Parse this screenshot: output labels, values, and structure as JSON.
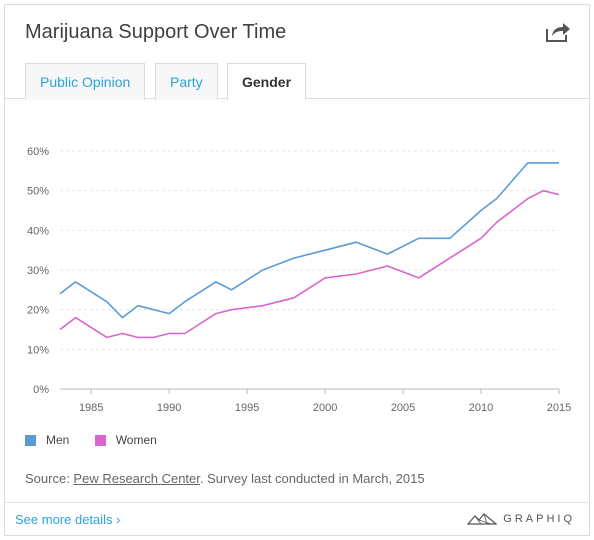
{
  "header": {
    "title": "Marijuana Support Over Time",
    "share_icon": "share-icon"
  },
  "tabs": [
    {
      "label": "Public Opinion",
      "active": false
    },
    {
      "label": "Party",
      "active": false
    },
    {
      "label": "Gender",
      "active": true
    }
  ],
  "chart_data": {
    "type": "line",
    "title": "",
    "xlabel": "",
    "ylabel": "",
    "xlim": [
      1983,
      2015
    ],
    "ylim": [
      0,
      60
    ],
    "x_ticks": [
      1985,
      1990,
      1995,
      2000,
      2005,
      2010,
      2015
    ],
    "x_tick_labels": [
      "1985",
      "1990",
      "1995",
      "2000",
      "2005",
      "2010",
      "2015"
    ],
    "y_ticks": [
      0,
      10,
      20,
      30,
      40,
      50,
      60
    ],
    "y_tick_labels": [
      "0%",
      "10%",
      "20%",
      "30%",
      "40%",
      "50%",
      "60%"
    ],
    "grid": true,
    "legend_position": "bottom-left",
    "series": [
      {
        "name": "Men",
        "color": "#5b9bd5",
        "x": [
          1983,
          1984,
          1986,
          1987,
          1988,
          1990,
          1991,
          1993,
          1994,
          1996,
          1998,
          2000,
          2002,
          2004,
          2006,
          2008,
          2010,
          2011,
          2013,
          2014,
          2015
        ],
        "y": [
          24,
          27,
          22,
          18,
          21,
          19,
          22,
          27,
          25,
          30,
          33,
          35,
          37,
          34,
          38,
          38,
          45,
          48,
          57,
          57,
          57
        ]
      },
      {
        "name": "Women",
        "color": "#d966cc",
        "x": [
          1983,
          1984,
          1986,
          1987,
          1988,
          1989,
          1990,
          1991,
          1993,
          1994,
          1996,
          1998,
          2000,
          2002,
          2004,
          2006,
          2008,
          2010,
          2011,
          2013,
          2014,
          2015
        ],
        "y": [
          15,
          18,
          13,
          14,
          13,
          13,
          14,
          14,
          19,
          20,
          21,
          23,
          28,
          29,
          31,
          28,
          33,
          38,
          42,
          48,
          50,
          49
        ]
      }
    ]
  },
  "legend": [
    {
      "label": "Men",
      "color": "#5b9bd5"
    },
    {
      "label": "Women",
      "color": "#d966cc"
    }
  ],
  "source": {
    "prefix": "Source: ",
    "link_text": "Pew Research Center",
    "suffix": ". Survey last conducted in March, 2015"
  },
  "footer": {
    "details_label": "See more details ›",
    "brand": "GRAPHIQ"
  }
}
